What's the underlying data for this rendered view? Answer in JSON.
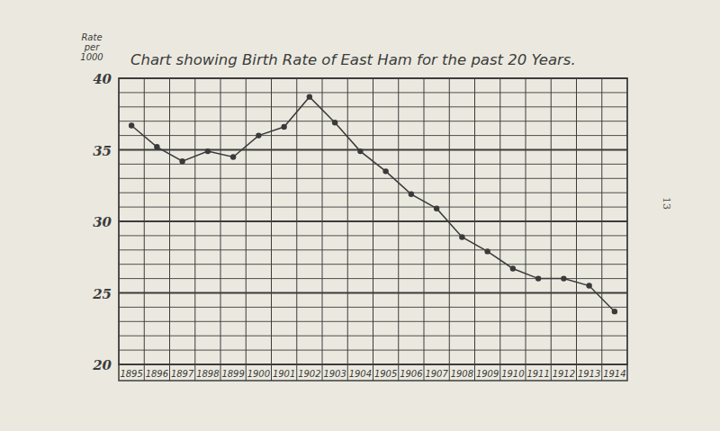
{
  "chart_data": {
    "type": "line",
    "title": "Chart showing Birth Rate of East Ham for the past 20 Years.",
    "y_label": "Rate per 1000",
    "annotations": [
      "13"
    ],
    "categories": [
      "1895",
      "1896",
      "1897",
      "1898",
      "1899",
      "1900",
      "1901",
      "1902",
      "1903",
      "1904",
      "1905",
      "1906",
      "1907",
      "1908",
      "1909",
      "1910",
      "1911",
      "1912",
      "1913",
      "1914"
    ],
    "values": [
      36.7,
      35.2,
      34.2,
      34.9,
      34.5,
      36.0,
      36.6,
      38.7,
      36.9,
      34.9,
      33.5,
      31.9,
      30.9,
      28.9,
      27.9,
      26.7,
      26.0,
      26.0,
      25.5,
      23.7
    ],
    "color": "#3a3a3a",
    "marker": "circle",
    "ylim": [
      20,
      40
    ],
    "yticks": [
      20,
      25,
      30,
      35,
      40
    ],
    "grid": true
  }
}
